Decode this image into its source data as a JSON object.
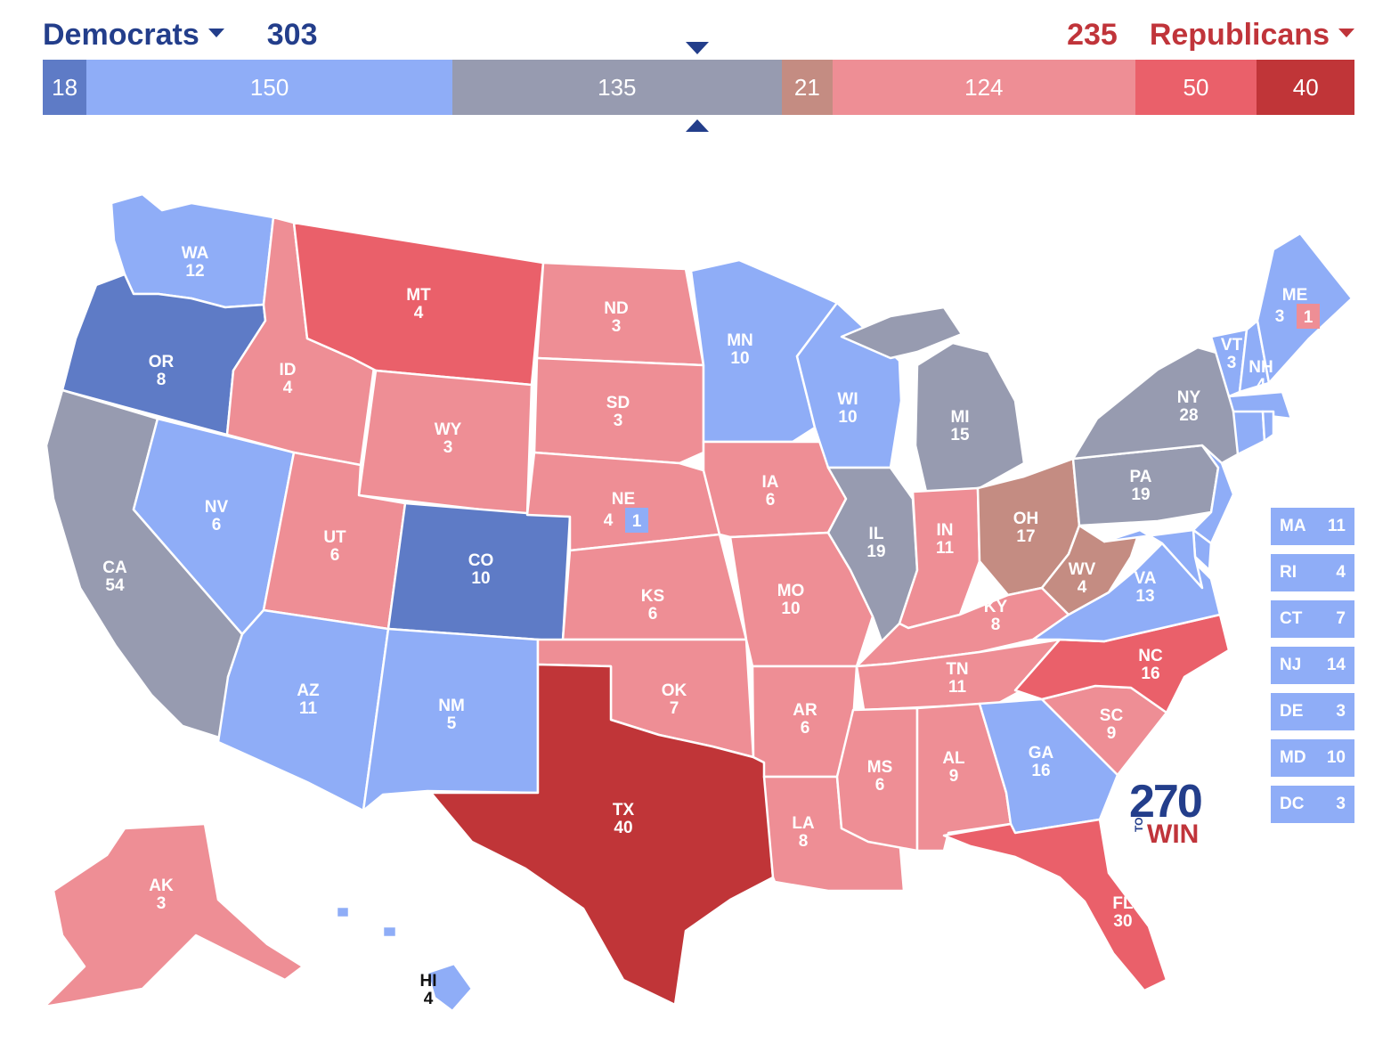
{
  "header": {
    "dem_label": "Democrats",
    "dem_total": "303",
    "rep_total": "235",
    "rep_label": "Republicans"
  },
  "colors": {
    "safe_dem": "#5e7bc6",
    "likely_dem": "#8fadf7",
    "tossup": "#979bb0",
    "tilt_rep": "#c48c82",
    "likely_rep": "#ee8e95",
    "lean_rep": "#ea606a",
    "safe_rep": "#c03538",
    "dem_text": "#233e8b",
    "rep_text": "#c0343a"
  },
  "bar": [
    {
      "value": 18,
      "label": "18",
      "color": "#5e7bc6"
    },
    {
      "value": 150,
      "label": "150",
      "color": "#8fadf7"
    },
    {
      "value": 135,
      "label": "135",
      "color": "#979bb0"
    },
    {
      "value": 21,
      "label": "21",
      "color": "#c48c82"
    },
    {
      "value": 124,
      "label": "124",
      "color": "#ee8e95"
    },
    {
      "value": 50,
      "label": "50",
      "color": "#ea606a"
    },
    {
      "value": 40,
      "label": "40",
      "color": "#c03538"
    }
  ],
  "states": {
    "WA": {
      "abbr": "WA",
      "ev": "12",
      "rating": "likely_dem"
    },
    "OR": {
      "abbr": "OR",
      "ev": "8",
      "rating": "safe_dem"
    },
    "CA": {
      "abbr": "CA",
      "ev": "54",
      "rating": "tossup"
    },
    "NV": {
      "abbr": "NV",
      "ev": "6",
      "rating": "likely_dem"
    },
    "ID": {
      "abbr": "ID",
      "ev": "4",
      "rating": "likely_rep"
    },
    "MT": {
      "abbr": "MT",
      "ev": "4",
      "rating": "lean_rep"
    },
    "WY": {
      "abbr": "WY",
      "ev": "3",
      "rating": "likely_rep"
    },
    "UT": {
      "abbr": "UT",
      "ev": "6",
      "rating": "likely_rep"
    },
    "AZ": {
      "abbr": "AZ",
      "ev": "11",
      "rating": "likely_dem"
    },
    "CO": {
      "abbr": "CO",
      "ev": "10",
      "rating": "safe_dem"
    },
    "NM": {
      "abbr": "NM",
      "ev": "5",
      "rating": "likely_dem"
    },
    "ND": {
      "abbr": "ND",
      "ev": "3",
      "rating": "likely_rep"
    },
    "SD": {
      "abbr": "SD",
      "ev": "3",
      "rating": "likely_rep"
    },
    "NE": {
      "abbr": "NE",
      "ev": "4",
      "ev_district": "1",
      "rating": "likely_rep"
    },
    "KS": {
      "abbr": "KS",
      "ev": "6",
      "rating": "likely_rep"
    },
    "OK": {
      "abbr": "OK",
      "ev": "7",
      "rating": "likely_rep"
    },
    "TX": {
      "abbr": "TX",
      "ev": "40",
      "rating": "safe_rep"
    },
    "MN": {
      "abbr": "MN",
      "ev": "10",
      "rating": "likely_dem"
    },
    "IA": {
      "abbr": "IA",
      "ev": "6",
      "rating": "likely_rep"
    },
    "MO": {
      "abbr": "MO",
      "ev": "10",
      "rating": "likely_rep"
    },
    "AR": {
      "abbr": "AR",
      "ev": "6",
      "rating": "likely_rep"
    },
    "LA": {
      "abbr": "LA",
      "ev": "8",
      "rating": "likely_rep"
    },
    "WI": {
      "abbr": "WI",
      "ev": "10",
      "rating": "likely_dem"
    },
    "IL": {
      "abbr": "IL",
      "ev": "19",
      "rating": "tossup"
    },
    "MI": {
      "abbr": "MI",
      "ev": "15",
      "rating": "tossup"
    },
    "IN": {
      "abbr": "IN",
      "ev": "11",
      "rating": "likely_rep"
    },
    "OH": {
      "abbr": "OH",
      "ev": "17",
      "rating": "tilt_rep"
    },
    "KY": {
      "abbr": "KY",
      "ev": "8",
      "rating": "likely_rep"
    },
    "TN": {
      "abbr": "TN",
      "ev": "11",
      "rating": "likely_rep"
    },
    "MS": {
      "abbr": "MS",
      "ev": "6",
      "rating": "likely_rep"
    },
    "AL": {
      "abbr": "AL",
      "ev": "9",
      "rating": "likely_rep"
    },
    "GA": {
      "abbr": "GA",
      "ev": "16",
      "rating": "likely_dem"
    },
    "FL": {
      "abbr": "FL",
      "ev": "30",
      "rating": "lean_rep"
    },
    "SC": {
      "abbr": "SC",
      "ev": "9",
      "rating": "likely_rep"
    },
    "NC": {
      "abbr": "NC",
      "ev": "16",
      "rating": "lean_rep"
    },
    "VA": {
      "abbr": "VA",
      "ev": "13",
      "rating": "likely_dem"
    },
    "WV": {
      "abbr": "WV",
      "ev": "4",
      "rating": "tilt_rep"
    },
    "PA": {
      "abbr": "PA",
      "ev": "19",
      "rating": "tossup"
    },
    "NY": {
      "abbr": "NY",
      "ev": "28",
      "rating": "tossup"
    },
    "VT": {
      "abbr": "VT",
      "ev": "3",
      "rating": "likely_dem"
    },
    "NH": {
      "abbr": "NH",
      "ev": "4",
      "rating": "likely_dem"
    },
    "ME": {
      "abbr": "ME",
      "ev": "3",
      "ev_district": "1",
      "rating": "likely_dem"
    },
    "AK": {
      "abbr": "AK",
      "ev": "3",
      "rating": "likely_rep"
    },
    "HI": {
      "abbr": "HI",
      "ev": "4",
      "rating": "likely_dem"
    }
  },
  "small_states": [
    {
      "abbr": "MA",
      "ev": "11"
    },
    {
      "abbr": "RI",
      "ev": "4"
    },
    {
      "abbr": "CT",
      "ev": "7"
    },
    {
      "abbr": "NJ",
      "ev": "14"
    },
    {
      "abbr": "DE",
      "ev": "3"
    },
    {
      "abbr": "MD",
      "ev": "10"
    },
    {
      "abbr": "DC",
      "ev": "3"
    }
  ],
  "logo": {
    "number": "270",
    "to": "TO",
    "win": "WIN"
  }
}
